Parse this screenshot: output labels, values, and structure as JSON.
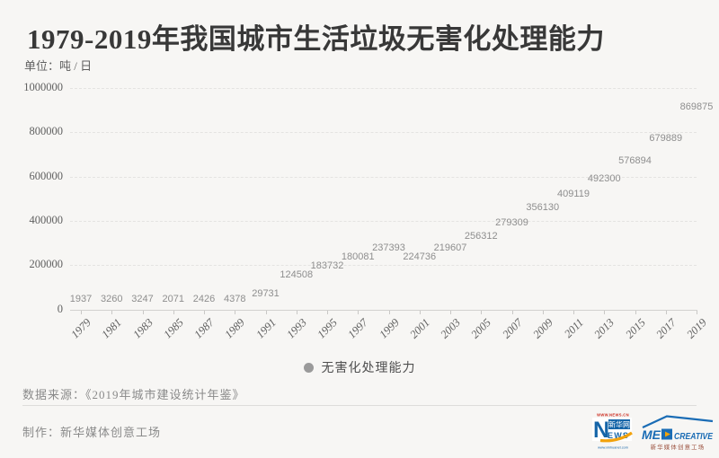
{
  "header": {
    "unit": "单位：吨 / 日"
  },
  "chart_data": {
    "type": "scatter",
    "title": "1979-2019年我国城市生活垃圾无害化处理能力",
    "x": [
      1979,
      1981,
      1983,
      1985,
      1987,
      1989,
      1991,
      1993,
      1995,
      1997,
      1999,
      2001,
      2003,
      2005,
      2007,
      2009,
      2011,
      2013,
      2015,
      2017,
      2019
    ],
    "series": [
      {
        "name": "无害化处理能力",
        "values": [
          1937,
          3260,
          3247,
          2071,
          2426,
          4378,
          29731,
          124508,
          183732,
          180081,
          237393,
          224736,
          219607,
          256312,
          279309,
          356130,
          409119,
          492300,
          576894,
          679889,
          869875
        ]
      }
    ],
    "ylabel": "吨/日",
    "ylim": [
      0,
      1000000
    ],
    "yticks": [
      0,
      200000,
      400000,
      600000,
      800000,
      1000000
    ],
    "grid": "horizontal-dashed",
    "markers": "value-labels-only",
    "legend_position": "bottom-center"
  },
  "legend": {
    "label": "无害化处理能力",
    "dot_color": "#9a9a9a"
  },
  "footer": {
    "source_label": "数据来源：",
    "source_text": "《2019年城市建设统计年鉴》",
    "credit_label": "制作：",
    "credit_text": "新华媒体创意工场"
  },
  "logos": {
    "xinhuanet": {
      "url_top": "WWW.NEWS.CN",
      "n": "N",
      "name": "新华网",
      "ews": "EWS",
      "url_bottom": "www.xinhuanet.com"
    },
    "medcreative": {
      "me": "ME",
      "creative": "CREATIVE",
      "subtitle": "新华媒体创意工场"
    }
  },
  "colors": {
    "background": "#f7f6f4",
    "title_text": "#383838",
    "axis_text": "#5f5f5f",
    "data_label": "#8e8e8e",
    "gridline": "#e4e3e1",
    "legend_dot": "#9a9a9a",
    "xinhua_blue": "#1565a8",
    "xinhua_red": "#cc2a1e",
    "swoosh_yellow": "#f2a20c",
    "med_blue": "#1a6cb5",
    "med_orange": "#f0a30a",
    "med_subtitle": "#9a4f3c"
  }
}
